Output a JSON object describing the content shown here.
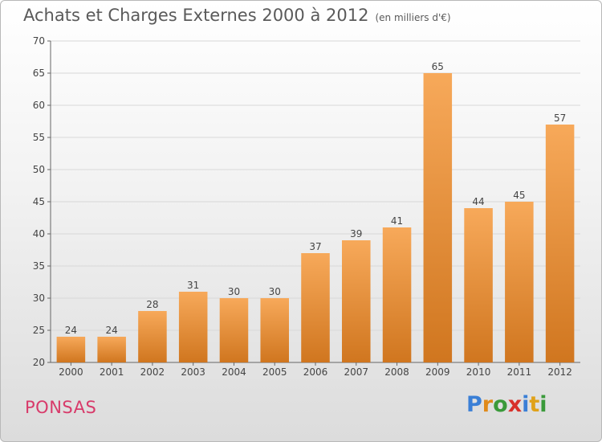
{
  "header": {
    "title": "Achats et Charges Externes 2000 à 2012",
    "unit": "(en milliers d'€)"
  },
  "footer": {
    "place": "PONSAS",
    "logo": [
      "P",
      "r",
      "o",
      "x",
      "i",
      "t",
      "i"
    ],
    "logo_colors": [
      "#3a7fd6",
      "#e08a1a",
      "#3a9a3a",
      "#d8302a",
      "#3a7fd6",
      "#e0a21a",
      "#3a9a3a"
    ]
  },
  "colors": {
    "bar_top": "#f7a95a",
    "bar_bottom": "#d0761f",
    "grid": "#d8d8d8",
    "axis": "#666666"
  },
  "chart_data": {
    "type": "bar",
    "title": "Achats et Charges Externes 2000 à 2012",
    "subtitle": "(en milliers d'€)",
    "categories": [
      "2000",
      "2001",
      "2002",
      "2003",
      "2004",
      "2005",
      "2006",
      "2007",
      "2008",
      "2009",
      "2010",
      "2011",
      "2012"
    ],
    "values": [
      24,
      24,
      28,
      31,
      30,
      30,
      37,
      39,
      41,
      65,
      44,
      45,
      57
    ],
    "ylim": [
      20,
      70
    ],
    "yticks": [
      20,
      25,
      30,
      35,
      40,
      45,
      50,
      55,
      60,
      65,
      70
    ],
    "grid": true,
    "legend": "none"
  }
}
